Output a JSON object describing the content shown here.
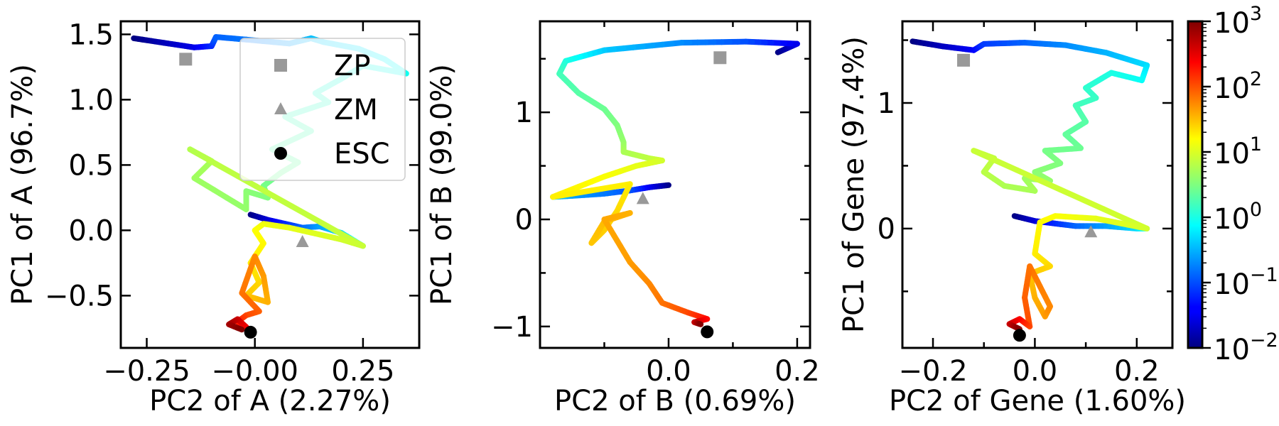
{
  "chart_data": [
    {
      "type": "scatter",
      "xlabel": "PC2 of A (2.27%)",
      "ylabel": "PC1 of A (96.7%)",
      "xlim": [
        -0.31,
        0.38
      ],
      "ylim": [
        -0.9,
        1.6
      ],
      "xticks": [
        -0.25,
        0.0,
        0.25
      ],
      "xtick_labels": [
        "−0.25",
        "−0.00",
        "0.25"
      ],
      "yticks": [
        -0.5,
        0.0,
        0.5,
        1.0,
        1.5
      ],
      "ytick_labels": [
        "−0.5",
        "0.0",
        "0.5",
        "1.0",
        "1.5"
      ],
      "legend": {
        "placement": "upper-right",
        "entries": [
          {
            "label": "ZP",
            "marker": "square",
            "color": "#999999"
          },
          {
            "label": "ZM",
            "marker": "triangle",
            "color": "#999999"
          },
          {
            "label": "ESC",
            "marker": "circle",
            "color": "#000000"
          }
        ]
      },
      "markers": {
        "ZP": [
          -0.16,
          1.31
        ],
        "ZM": [
          0.11,
          -0.09
        ],
        "ESC": [
          -0.01,
          -0.78
        ]
      },
      "trajectory": [
        [
          -0.28,
          1.47,
          -2.0
        ],
        [
          -0.2,
          1.43,
          -1.7
        ],
        [
          -0.14,
          1.4,
          -1.5
        ],
        [
          -0.1,
          1.41,
          -1.2
        ],
        [
          -0.09,
          1.48,
          -0.9
        ],
        [
          -0.02,
          1.46,
          -0.8
        ],
        [
          0.08,
          1.43,
          -0.6
        ],
        [
          0.13,
          1.47,
          -0.45
        ],
        [
          0.16,
          1.44,
          -0.35
        ],
        [
          0.24,
          1.39,
          -0.25
        ],
        [
          0.3,
          1.31,
          -0.15
        ],
        [
          0.35,
          1.2,
          -0.05
        ],
        [
          0.25,
          1.26,
          0.0
        ],
        [
          0.2,
          1.16,
          0.05
        ],
        [
          0.14,
          1.05,
          0.1
        ],
        [
          0.17,
          0.98,
          0.15
        ],
        [
          0.07,
          0.87,
          0.2
        ],
        [
          0.13,
          0.76,
          0.25
        ],
        [
          0.04,
          0.62,
          0.3
        ],
        [
          0.1,
          0.52,
          0.35
        ],
        [
          0.06,
          0.44,
          0.4
        ],
        [
          0.02,
          0.34,
          0.45
        ],
        [
          0.03,
          0.25,
          0.5
        ],
        [
          -0.02,
          0.3,
          0.55
        ],
        [
          -0.02,
          0.16,
          0.6
        ],
        [
          -0.14,
          0.4,
          0.65
        ],
        [
          -0.1,
          0.53,
          0.7
        ],
        [
          -0.15,
          0.62,
          0.75
        ],
        [
          -0.08,
          0.49,
          0.8
        ],
        [
          0.25,
          -0.12,
          0.85
        ],
        [
          0.2,
          -0.07,
          0.9
        ],
        [
          0.16,
          -0.04,
          0.95
        ],
        [
          0.08,
          0.02,
          1.0
        ],
        [
          0.02,
          0.05,
          1.05
        ],
        [
          0.0,
          0.0,
          1.1
        ],
        [
          0.02,
          -0.1,
          1.15
        ],
        [
          -0.01,
          -0.25,
          1.2
        ],
        [
          0.01,
          -0.4,
          1.3
        ],
        [
          -0.02,
          -0.5,
          1.4
        ],
        [
          0.03,
          -0.55,
          1.5
        ],
        [
          0.02,
          -0.35,
          1.6
        ],
        [
          0.0,
          -0.2,
          1.7
        ],
        [
          -0.03,
          -0.48,
          1.8
        ],
        [
          0.01,
          -0.62,
          1.9
        ],
        [
          -0.02,
          -0.65,
          2.0
        ],
        [
          -0.04,
          -0.7,
          2.2
        ],
        [
          -0.02,
          -0.74,
          2.4
        ],
        [
          -0.04,
          -0.68,
          2.6
        ],
        [
          -0.06,
          -0.72,
          2.8
        ],
        [
          -0.03,
          -0.76,
          3.0
        ]
      ],
      "branch": [
        [
          -0.01,
          0.12,
          -2.0
        ],
        [
          0.03,
          0.08,
          -1.6
        ],
        [
          0.07,
          0.05,
          -1.2
        ],
        [
          0.11,
          0.02,
          -0.9
        ],
        [
          0.15,
          0.03,
          -0.6
        ],
        [
          0.2,
          -0.02,
          -0.3
        ],
        [
          0.25,
          -0.12,
          0.0
        ]
      ]
    },
    {
      "type": "scatter",
      "xlabel": "PC2 of B (0.69%)",
      "ylabel": "PC1 of B (99.0%)",
      "xlim": [
        -0.2,
        0.22
      ],
      "ylim": [
        -1.2,
        1.85
      ],
      "xticks": [
        -0.1,
        0.0,
        0.1,
        0.2
      ],
      "xtick_labels": [
        "",
        "0.0",
        "",
        "0.2"
      ],
      "yticks": [
        -1,
        -0.5,
        0,
        0.5,
        1,
        1.5
      ],
      "ytick_labels": [
        "−1",
        "",
        "0",
        "",
        "1",
        ""
      ],
      "markers": {
        "ZP": [
          0.08,
          1.51
        ],
        "ZM": [
          -0.04,
          0.19
        ],
        "ESC": [
          0.06,
          -1.05
        ]
      },
      "trajectory": [
        [
          0.17,
          1.56,
          -2.0
        ],
        [
          0.2,
          1.64,
          -1.5
        ],
        [
          0.12,
          1.66,
          -1.0
        ],
        [
          0.02,
          1.65,
          -0.7
        ],
        [
          -0.1,
          1.58,
          -0.4
        ],
        [
          -0.16,
          1.48,
          0.0
        ],
        [
          -0.17,
          1.36,
          0.2
        ],
        [
          -0.14,
          1.18,
          0.3
        ],
        [
          -0.1,
          1.03,
          0.4
        ],
        [
          -0.08,
          0.88,
          0.5
        ],
        [
          -0.07,
          0.72,
          0.6
        ],
        [
          -0.07,
          0.63,
          0.7
        ],
        [
          -0.03,
          0.57,
          0.8
        ],
        [
          -0.01,
          0.55,
          0.9
        ],
        [
          -0.05,
          0.5,
          1.0
        ],
        [
          -0.1,
          0.4,
          1.1
        ],
        [
          -0.18,
          0.21,
          1.2
        ],
        [
          -0.06,
          0.33,
          1.2
        ],
        [
          -0.08,
          0.08,
          1.3
        ],
        [
          -0.1,
          -0.1,
          1.35
        ],
        [
          -0.12,
          -0.22,
          1.4
        ],
        [
          -0.1,
          -0.02,
          1.45
        ],
        [
          -0.06,
          0.06,
          1.5
        ],
        [
          -0.1,
          0.0,
          1.55
        ],
        [
          -0.06,
          -0.4,
          1.6
        ],
        [
          -0.03,
          -0.6,
          1.7
        ],
        [
          -0.01,
          -0.78,
          1.8
        ],
        [
          0.03,
          -0.87,
          2.0
        ],
        [
          0.06,
          -0.93,
          2.3
        ],
        [
          0.04,
          -0.96,
          2.6
        ],
        [
          0.05,
          -0.98,
          3.0
        ]
      ],
      "branch": [
        [
          0.0,
          0.32,
          -2.0
        ],
        [
          -0.03,
          0.3,
          -1.5
        ],
        [
          -0.06,
          0.27,
          -1.0
        ],
        [
          -0.1,
          0.24,
          -0.8
        ],
        [
          -0.15,
          0.22,
          -0.6
        ],
        [
          -0.18,
          0.21,
          -0.4
        ]
      ]
    },
    {
      "type": "scatter",
      "xlabel": "PC2 of Gene (1.60%)",
      "ylabel": "PC1 of Gene (97.4%)",
      "xlim": [
        -0.26,
        0.27
      ],
      "ylim": [
        -0.95,
        1.65
      ],
      "xticks": [
        -0.2,
        -0.1,
        0.0,
        0.1,
        0.2
      ],
      "xtick_labels": [
        "−0.2",
        "",
        "0.0",
        "",
        "0.2"
      ],
      "yticks": [
        -0.5,
        0,
        0.5,
        1,
        1.5
      ],
      "ytick_labels": [
        "",
        "0",
        "",
        "1",
        ""
      ],
      "markers": {
        "ZP": [
          -0.14,
          1.34
        ],
        "ZM": [
          0.11,
          -0.03
        ],
        "ESC": [
          -0.03,
          -0.85
        ]
      },
      "trajectory": [
        [
          -0.24,
          1.49,
          -2.0
        ],
        [
          -0.18,
          1.45,
          -1.7
        ],
        [
          -0.12,
          1.42,
          -1.4
        ],
        [
          -0.1,
          1.47,
          -1.1
        ],
        [
          -0.02,
          1.48,
          -0.9
        ],
        [
          0.06,
          1.46,
          -0.7
        ],
        [
          0.14,
          1.4,
          -0.5
        ],
        [
          0.22,
          1.3,
          -0.3
        ],
        [
          0.21,
          1.18,
          -0.1
        ],
        [
          0.15,
          1.24,
          0.0
        ],
        [
          0.1,
          1.12,
          0.1
        ],
        [
          0.12,
          1.04,
          0.15
        ],
        [
          0.08,
          0.98,
          0.2
        ],
        [
          0.1,
          0.85,
          0.3
        ],
        [
          0.06,
          0.75,
          0.35
        ],
        [
          0.09,
          0.64,
          0.4
        ],
        [
          0.02,
          0.62,
          0.45
        ],
        [
          0.05,
          0.52,
          0.5
        ],
        [
          0.0,
          0.45,
          0.55
        ],
        [
          0.03,
          0.38,
          0.6
        ],
        [
          -0.02,
          0.4,
          0.65
        ],
        [
          0.0,
          0.3,
          0.7
        ],
        [
          -0.06,
          0.34,
          0.72
        ],
        [
          -0.1,
          0.45,
          0.78
        ],
        [
          -0.08,
          0.56,
          0.82
        ],
        [
          -0.12,
          0.62,
          0.85
        ],
        [
          0.22,
          0.0,
          0.9
        ],
        [
          0.12,
          0.08,
          1.0
        ],
        [
          0.04,
          0.1,
          1.1
        ],
        [
          0.01,
          0.05,
          1.15
        ],
        [
          0.0,
          -0.2,
          1.2
        ],
        [
          0.03,
          -0.3,
          1.3
        ],
        [
          -0.01,
          -0.36,
          1.4
        ],
        [
          0.0,
          -0.55,
          1.5
        ],
        [
          0.02,
          -0.7,
          1.6
        ],
        [
          0.03,
          -0.62,
          1.7
        ],
        [
          -0.01,
          -0.3,
          1.8
        ],
        [
          -0.02,
          -0.55,
          1.9
        ],
        [
          -0.01,
          -0.78,
          2.0
        ],
        [
          -0.03,
          -0.72,
          2.3
        ],
        [
          -0.05,
          -0.76,
          2.6
        ],
        [
          -0.03,
          -0.8,
          3.0
        ]
      ],
      "branch": [
        [
          -0.04,
          0.1,
          -2.0
        ],
        [
          0.0,
          0.06,
          -1.6
        ],
        [
          0.04,
          0.04,
          -1.2
        ],
        [
          0.08,
          0.02,
          -0.9
        ],
        [
          0.14,
          0.02,
          -0.6
        ],
        [
          0.2,
          0.0,
          -0.3
        ],
        [
          0.22,
          0.0,
          0.0
        ]
      ]
    }
  ],
  "colorbar": {
    "cmap": "jet",
    "scale": "log",
    "range": [
      0.01,
      1000
    ],
    "ticks": [
      {
        "base": "10",
        "exp": "−2",
        "value_log": -2
      },
      {
        "base": "10",
        "exp": "−1",
        "value_log": -1
      },
      {
        "base": "10",
        "exp": "0",
        "value_log": 0
      },
      {
        "base": "10",
        "exp": "1",
        "value_log": 1
      },
      {
        "base": "10",
        "exp": "2",
        "value_log": 2
      },
      {
        "base": "10",
        "exp": "3",
        "value_log": 3
      }
    ]
  }
}
